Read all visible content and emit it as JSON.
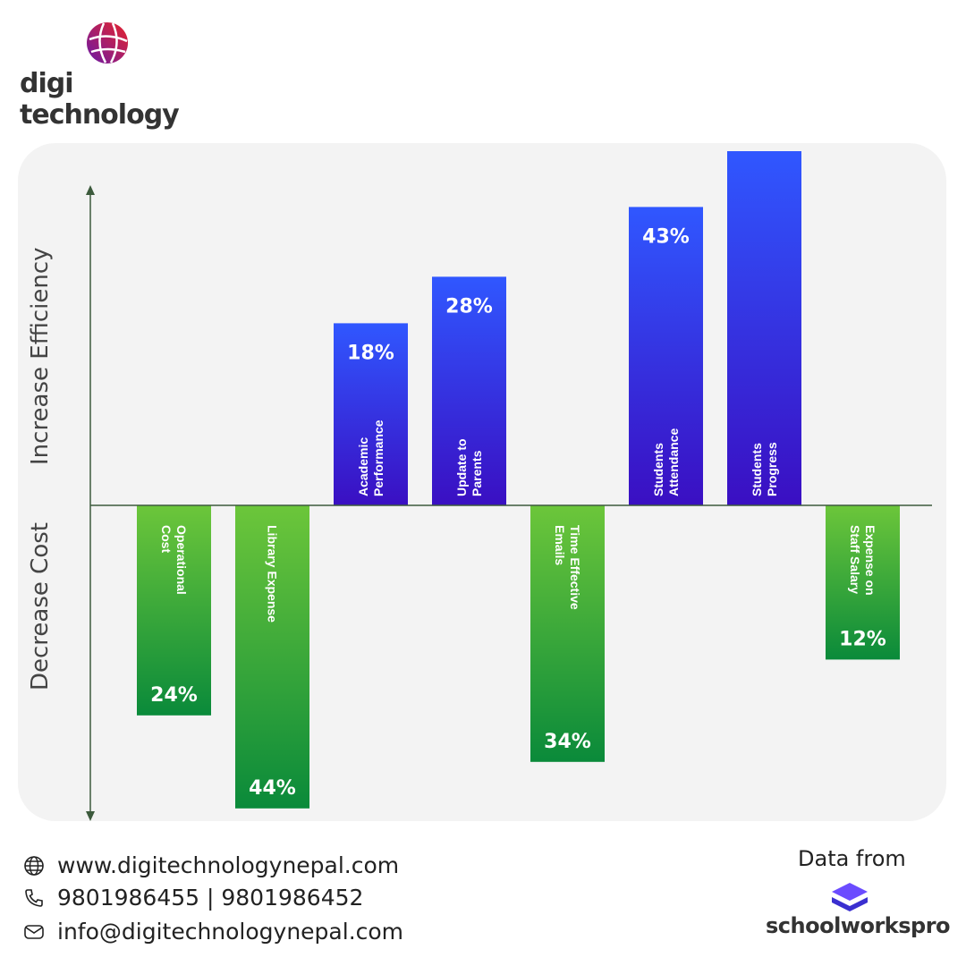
{
  "brand": {
    "name": "digi technology"
  },
  "chart_data": {
    "type": "bar",
    "title": "",
    "ylabel_positive": "Increase Efficiency",
    "ylabel_negative": "Decrease Cost",
    "categories": [
      "Operational Cost",
      "Library Expense",
      "Academic Performance",
      "Update to Parents",
      "Time Effective Emails",
      "Students Attendance",
      "Students Progress",
      "Expense on Staff Salary"
    ],
    "series": [
      {
        "values": [
          24,
          44,
          18,
          28,
          34,
          43,
          55,
          12
        ],
        "direction": [
          "decrease",
          "decrease",
          "increase",
          "increase",
          "decrease",
          "increase",
          "increase",
          "decrease"
        ],
        "value_labels": [
          "24%",
          "44%",
          "18%",
          "28%",
          "34%",
          "43%",
          "",
          "12%"
        ]
      }
    ],
    "colors": {
      "increase_top": "#3057ff",
      "increase_bottom": "#3a0fc2",
      "decrease_top": "#6cc63a",
      "decrease_bottom": "#0a8a3a",
      "axis": "#3c5a3c"
    },
    "grid": false,
    "legend": "none"
  },
  "contact": {
    "website": "www.digitechnologynepal.com",
    "phone": "9801986455 | 9801986452",
    "email": "info@digitechnologynepal.com"
  },
  "source": {
    "label": "Data from",
    "name": "schoolworkspro"
  }
}
